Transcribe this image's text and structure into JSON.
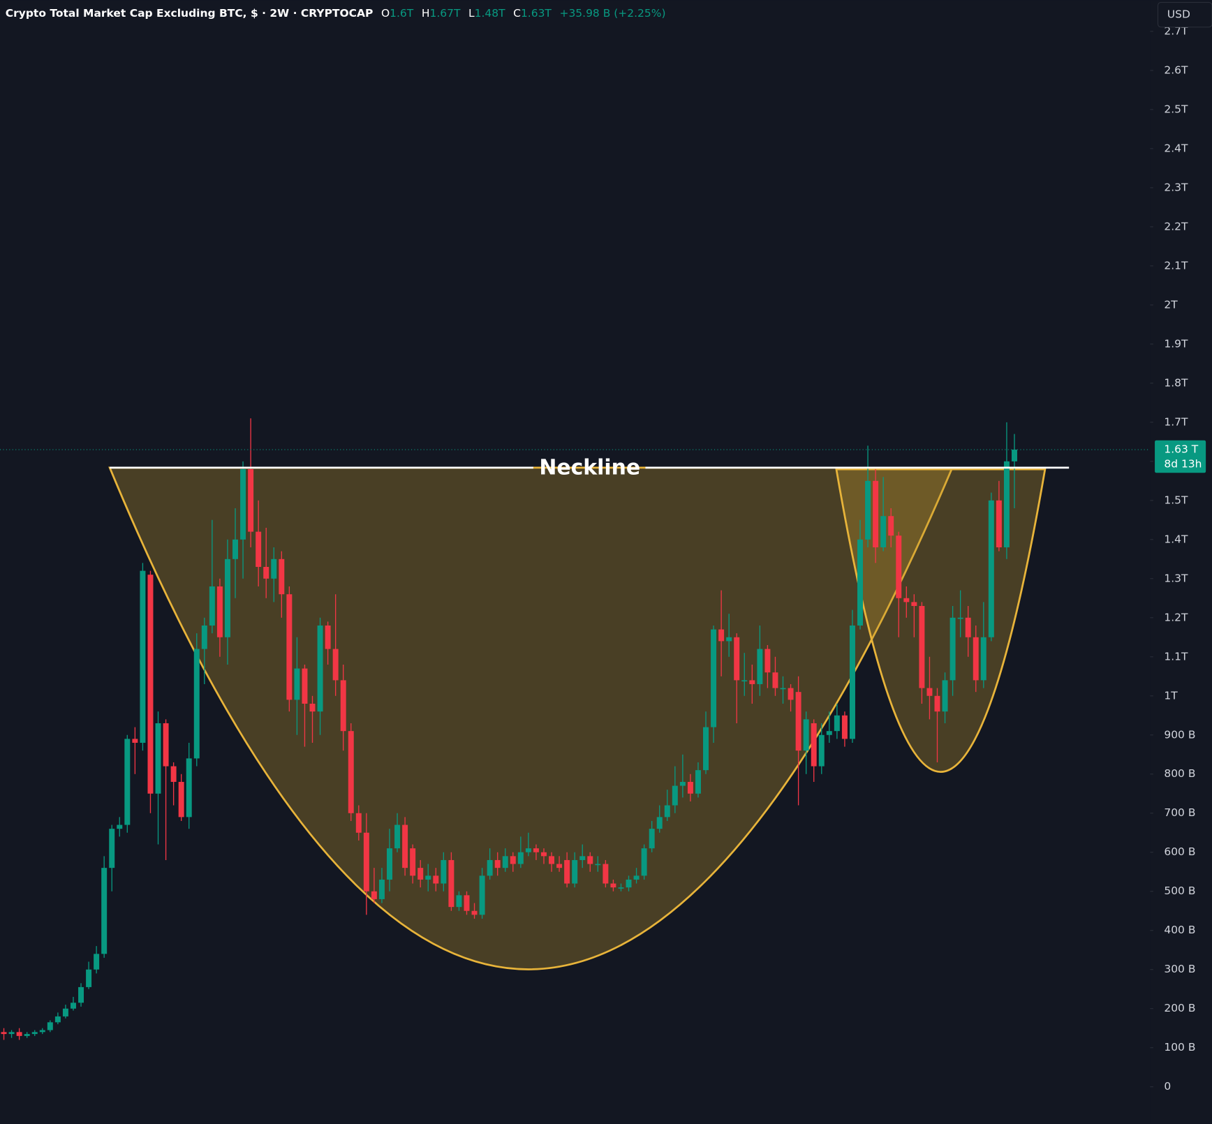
{
  "chart_data": {
    "type": "candlestick",
    "title": "Crypto Total Market Cap Excluding BTC, $ · 2W · CRYPTOCAP",
    "ohlc_header": {
      "open_label": "O",
      "open": "1.6T",
      "high_label": "H",
      "high": "1.67T",
      "low_label": "L",
      "low": "1.48T",
      "close_label": "C",
      "close": "1.63T",
      "change": "+35.98 B (+2.25%)"
    },
    "currency": "USD",
    "last_price_label": "1.63 T",
    "countdown": "8d 13h",
    "annotation": "Neckline",
    "up_color": "#089981",
    "down_color": "#f23645",
    "ylim": [
      -95,
      2780
    ],
    "yticks": [
      0,
      {
        "value": 100,
        "label": "100 B"
      },
      {
        "value": 200,
        "label": "200 B"
      },
      {
        "value": 300,
        "label": "300 B"
      },
      {
        "value": 400,
        "label": "400 B"
      },
      {
        "value": 500,
        "label": "500 B"
      },
      {
        "value": 600,
        "label": "600 B"
      },
      {
        "value": 700,
        "label": "700 B"
      },
      {
        "value": 800,
        "label": "800 B"
      },
      {
        "value": 900,
        "label": "900 B"
      },
      {
        "value": 1000,
        "label": "1T"
      },
      {
        "value": 1100,
        "label": "1.1T"
      },
      {
        "value": 1200,
        "label": "1.2T"
      },
      {
        "value": 1300,
        "label": "1.3T"
      },
      {
        "value": 1400,
        "label": "1.4T"
      },
      {
        "value": 1500,
        "label": "1.5T"
      },
      {
        "value": 1600,
        "label": "1.6T"
      },
      {
        "value": 1700,
        "label": "1.7T"
      },
      {
        "value": 1800,
        "label": "1.8T"
      },
      {
        "value": 1900,
        "label": "1.9T"
      },
      {
        "value": 2000,
        "label": "2T"
      },
      {
        "value": 2100,
        "label": "2.1T"
      },
      {
        "value": 2200,
        "label": "2.2T"
      },
      {
        "value": 2300,
        "label": "2.3T"
      },
      {
        "value": 2400,
        "label": "2.4T"
      },
      {
        "value": 2500,
        "label": "2.5T"
      },
      {
        "value": 2600,
        "label": "2.6T"
      },
      {
        "value": 2700,
        "label": "2.7T"
      }
    ],
    "open": [
      140,
      135,
      140,
      130,
      135,
      140,
      145,
      165,
      180,
      200,
      215,
      255,
      300,
      340,
      560,
      660,
      670,
      890,
      880,
      1310,
      750,
      930,
      820,
      780,
      690,
      840,
      1120,
      1180,
      1280,
      1150,
      1350,
      1400,
      1580,
      1420,
      1330,
      1300,
      1350,
      1260,
      990,
      1070,
      980,
      960,
      1180,
      1120,
      1040,
      910,
      700,
      650,
      500,
      480,
      530,
      610,
      670,
      610,
      560,
      530,
      540,
      520,
      580,
      460,
      490,
      450,
      440,
      540,
      580,
      560,
      590,
      570,
      600,
      610,
      600,
      590,
      570,
      580,
      520,
      580,
      590,
      570,
      570,
      520,
      510,
      510,
      530,
      540,
      610,
      660,
      690,
      720,
      770,
      780,
      750,
      810,
      920,
      1170,
      1140,
      1150,
      1040,
      1040,
      1030,
      1120,
      1060,
      1020,
      1020,
      1010,
      860,
      930,
      820,
      900,
      910,
      950,
      890,
      1180,
      1400,
      1550,
      1380,
      1460,
      1410,
      1250,
      1240,
      1230,
      1020,
      1000,
      960,
      1040,
      1200,
      1200,
      1150,
      1040,
      1150,
      1500,
      1380,
      1600
    ],
    "high": [
      150,
      145,
      150,
      140,
      145,
      150,
      170,
      190,
      210,
      230,
      265,
      320,
      360,
      590,
      670,
      690,
      900,
      920,
      1340,
      1320,
      960,
      940,
      830,
      800,
      880,
      1160,
      1200,
      1450,
      1300,
      1400,
      1480,
      1600,
      1710,
      1500,
      1430,
      1380,
      1370,
      1280,
      1150,
      1080,
      1000,
      1200,
      1190,
      1260,
      1080,
      930,
      720,
      700,
      560,
      560,
      660,
      700,
      690,
      620,
      580,
      570,
      560,
      600,
      600,
      500,
      500,
      470,
      560,
      610,
      600,
      610,
      600,
      640,
      650,
      620,
      610,
      600,
      590,
      600,
      600,
      620,
      600,
      590,
      580,
      530,
      520,
      540,
      560,
      620,
      680,
      720,
      760,
      820,
      850,
      800,
      830,
      960,
      1180,
      1270,
      1210,
      1160,
      1110,
      1080,
      1180,
      1130,
      1100,
      1050,
      1030,
      1050,
      960,
      940,
      930,
      960,
      980,
      960,
      1220,
      1450,
      1640,
      1580,
      1560,
      1480,
      1420,
      1280,
      1260,
      1240,
      1100,
      1020,
      1060,
      1230,
      1270,
      1230,
      1180,
      1240,
      1520,
      1550,
      1700,
      1670
    ],
    "low": [
      120,
      125,
      120,
      125,
      130,
      135,
      140,
      160,
      175,
      195,
      205,
      250,
      290,
      330,
      500,
      640,
      650,
      800,
      860,
      700,
      620,
      580,
      720,
      680,
      660,
      820,
      1030,
      1160,
      1100,
      1080,
      1250,
      1300,
      1380,
      1280,
      1250,
      1240,
      1200,
      960,
      900,
      870,
      880,
      900,
      1080,
      1000,
      860,
      680,
      630,
      440,
      470,
      470,
      500,
      600,
      540,
      520,
      510,
      500,
      500,
      500,
      450,
      450,
      440,
      430,
      430,
      530,
      540,
      550,
      550,
      560,
      590,
      580,
      570,
      550,
      550,
      510,
      510,
      560,
      550,
      550,
      510,
      500,
      500,
      500,
      520,
      530,
      600,
      650,
      680,
      700,
      740,
      730,
      740,
      800,
      880,
      1050,
      1100,
      930,
      1000,
      980,
      1000,
      1020,
      1000,
      980,
      960,
      720,
      800,
      780,
      800,
      880,
      890,
      870,
      880,
      1170,
      1380,
      1340,
      1370,
      1380,
      1150,
      1200,
      1150,
      980,
      940,
      830,
      930,
      1000,
      1150,
      1100,
      1010,
      1020,
      1140,
      1370,
      1350,
      1480
    ],
    "close": [
      135,
      140,
      130,
      135,
      140,
      145,
      165,
      180,
      200,
      215,
      255,
      300,
      340,
      560,
      660,
      670,
      890,
      880,
      1320,
      750,
      930,
      820,
      780,
      690,
      840,
      1120,
      1180,
      1280,
      1150,
      1350,
      1400,
      1580,
      1420,
      1330,
      1300,
      1350,
      1260,
      990,
      1070,
      980,
      960,
      1180,
      1120,
      1040,
      910,
      700,
      650,
      500,
      480,
      530,
      610,
      670,
      560,
      540,
      530,
      540,
      520,
      580,
      460,
      490,
      450,
      440,
      540,
      580,
      560,
      590,
      570,
      600,
      610,
      600,
      590,
      570,
      560,
      520,
      580,
      590,
      570,
      570,
      520,
      510,
      510,
      530,
      540,
      610,
      660,
      690,
      720,
      770,
      780,
      750,
      810,
      920,
      1170,
      1140,
      1150,
      1040,
      1040,
      1030,
      1120,
      1060,
      1020,
      1020,
      990,
      860,
      940,
      820,
      900,
      910,
      950,
      890,
      1180,
      1400,
      1550,
      1380,
      1460,
      1410,
      1250,
      1240,
      1230,
      1020,
      1000,
      960,
      1040,
      1200,
      1200,
      1150,
      1040,
      1150,
      1500,
      1380,
      1600,
      1630
    ]
  }
}
